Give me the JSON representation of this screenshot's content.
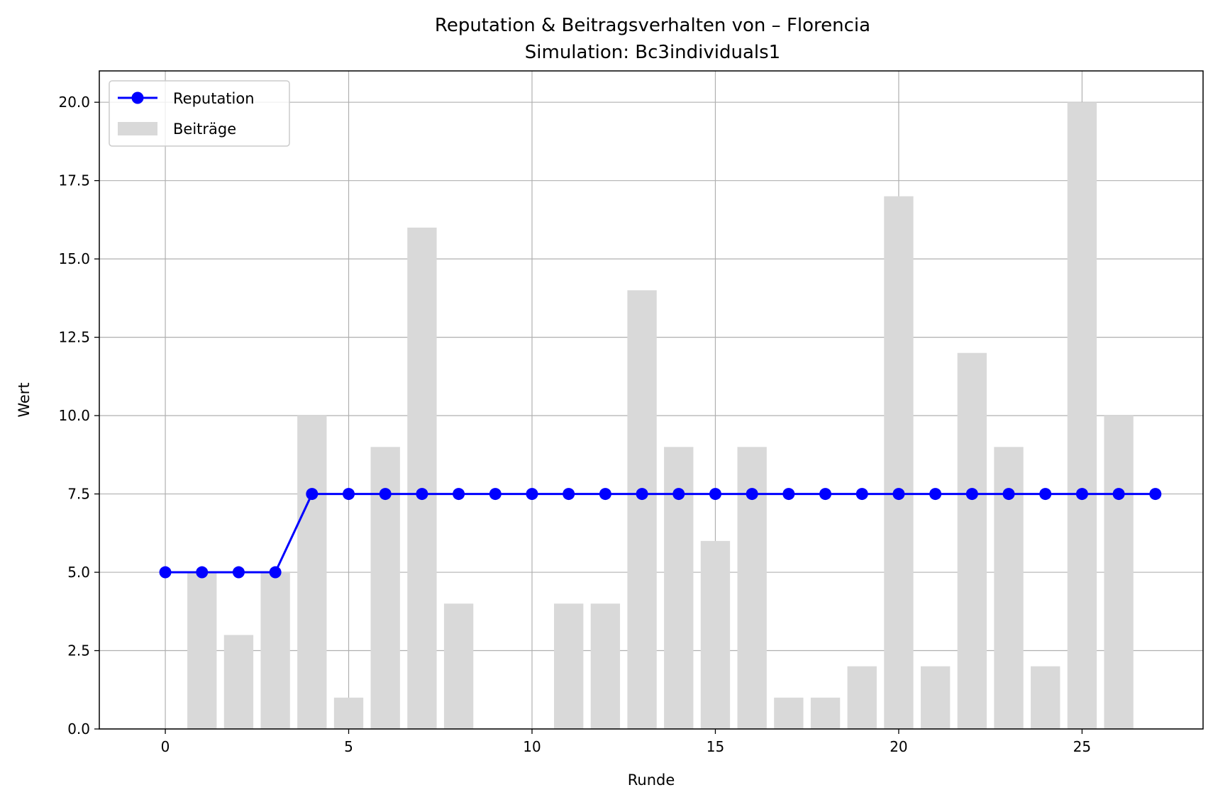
{
  "chart_data": {
    "type": "bar+line",
    "title": "Reputation & Beitragsverhalten von – Florencia",
    "subtitle": "Simulation: Bc3individuals1",
    "xlabel": "Runde",
    "ylabel": "Wert",
    "xlim": [
      -1.8,
      28.3
    ],
    "ylim": [
      0,
      21
    ],
    "x_ticks": [
      0,
      5,
      10,
      15,
      20,
      25
    ],
    "x_tick_labels": [
      "0",
      "5",
      "10",
      "15",
      "20",
      "25"
    ],
    "y_ticks": [
      0,
      2.5,
      5,
      7.5,
      10,
      12.5,
      15,
      17.5,
      20
    ],
    "y_tick_labels": [
      "0.0",
      "2.5",
      "5.0",
      "7.5",
      "10.0",
      "12.5",
      "15.0",
      "17.5",
      "20.0"
    ],
    "grid": true,
    "legend_position": "top-left",
    "series": [
      {
        "name": "Reputation",
        "kind": "line",
        "marker": "circle",
        "color": "#0000ff",
        "x": [
          0,
          1,
          2,
          3,
          4,
          5,
          6,
          7,
          8,
          9,
          10,
          11,
          12,
          13,
          14,
          15,
          16,
          17,
          18,
          19,
          20,
          21,
          22,
          23,
          24,
          25,
          26,
          27
        ],
        "values": [
          5,
          5,
          5,
          5,
          7.5,
          7.5,
          7.5,
          7.5,
          7.5,
          7.5,
          7.5,
          7.5,
          7.5,
          7.5,
          7.5,
          7.5,
          7.5,
          7.5,
          7.5,
          7.5,
          7.5,
          7.5,
          7.5,
          7.5,
          7.5,
          7.5,
          7.5,
          7.5
        ]
      },
      {
        "name": "Beiträge",
        "kind": "bar",
        "color": "#d9d9d9",
        "x": [
          0,
          1,
          2,
          3,
          4,
          5,
          6,
          7,
          8,
          9,
          10,
          11,
          12,
          13,
          14,
          15,
          16,
          17,
          18,
          19,
          20,
          21,
          22,
          23,
          24,
          25,
          26,
          27
        ],
        "values": [
          0,
          5,
          3,
          5,
          10,
          1,
          9,
          16,
          4,
          0,
          0,
          4,
          4,
          14,
          9,
          6,
          9,
          1,
          1,
          2,
          17,
          2,
          12,
          9,
          2,
          20,
          10,
          0
        ]
      }
    ]
  }
}
